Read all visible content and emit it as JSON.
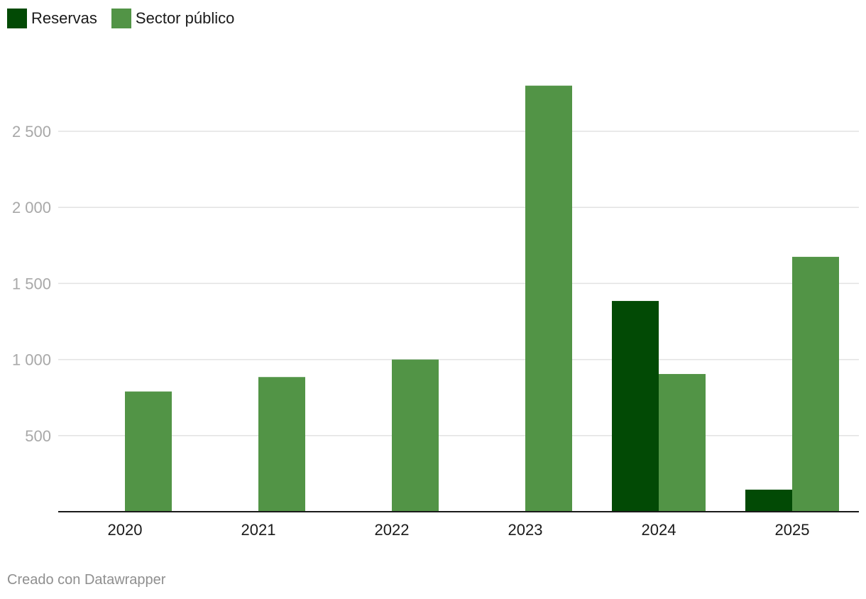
{
  "chart_data": {
    "type": "bar",
    "categories": [
      "2020",
      "2021",
      "2022",
      "2023",
      "2024",
      "2025"
    ],
    "series": [
      {
        "name": "Reservas",
        "color": "#024a05",
        "values": [
          0,
          0,
          0,
          0,
          1385,
          145
        ]
      },
      {
        "name": "Sector público",
        "color": "#529446",
        "values": [
          790,
          885,
          1000,
          2800,
          905,
          1675
        ]
      }
    ],
    "y_ticks": [
      500,
      1000,
      1500,
      2000,
      2500
    ],
    "y_tick_labels": [
      "500",
      "1 000",
      "1 500",
      "2 000",
      "2 500"
    ],
    "ylim": [
      0,
      2850
    ],
    "grid": true,
    "legend": "top-left",
    "title": "",
    "xlabel": "",
    "ylabel": ""
  },
  "footer": {
    "credit": "Creado con Datawrapper"
  }
}
